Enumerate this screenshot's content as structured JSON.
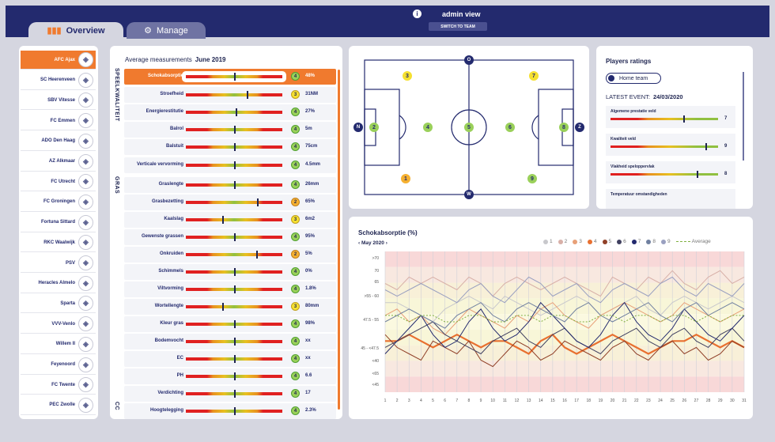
{
  "header": {
    "admin_label": "admin view",
    "switch_label": "SWITCH TO TEAM",
    "info_icon": "i",
    "tabs": [
      {
        "label": "Overview",
        "icon": "bar-chart-icon"
      },
      {
        "label": "Manage",
        "icon": "users-gear-icon"
      }
    ]
  },
  "teams": [
    "AFC Ajax",
    "SC Heerenveen",
    "SBV Vitesse",
    "FC Emmen",
    "ADO Den Haag",
    "AZ Alkmaar",
    "FC Utrecht",
    "FC Groningen",
    "Fortuna Sittard",
    "RKC Waalwijk",
    "PSV",
    "Heracles Almelo",
    "Sparta",
    "VVV-Venlo",
    "Willem II",
    "Feyenoord",
    "FC Twente",
    "PEC Zwolle"
  ],
  "measurements": {
    "title": "Average measurements",
    "period": "June 2019",
    "sections": [
      "SPEELKWALITEIT",
      "GRAS",
      "CC"
    ],
    "rows": [
      {
        "name": "Schokabsorptie",
        "score": "4",
        "value": "48%",
        "level": 0.5,
        "selected": true
      },
      {
        "name": "Stroefheid",
        "score": "3",
        "value": "31NM",
        "level": 0.63
      },
      {
        "name": "Energierestitutie",
        "score": "4",
        "value": "27%",
        "level": 0.52
      },
      {
        "name": "Balrol",
        "score": "4",
        "value": "5m",
        "level": 0.5
      },
      {
        "name": "Balstuit",
        "score": "4",
        "value": "75cm",
        "level": 0.5
      },
      {
        "name": "Verticale vervorming",
        "score": "4",
        "value": "4.5mm",
        "level": 0.5
      },
      {
        "name": "Graslengte",
        "score": "4",
        "value": "26mm",
        "level": 0.5
      },
      {
        "name": "Grasbezetting",
        "score": "2",
        "value": "65%",
        "level": 0.74
      },
      {
        "name": "Kaalslag",
        "score": "3",
        "value": "6m2",
        "level": 0.38
      },
      {
        "name": "Gewenste grassen",
        "score": "4",
        "value": "95%",
        "level": 0.5
      },
      {
        "name": "Onkruiden",
        "score": "2",
        "value": "5%",
        "level": 0.73
      },
      {
        "name": "Schimmels",
        "score": "4",
        "value": "0%",
        "level": 0.5
      },
      {
        "name": "Viltvorming",
        "score": "4",
        "value": "1.8%",
        "level": 0.5
      },
      {
        "name": "Wortellengte",
        "score": "3",
        "value": "80mm",
        "level": 0.38
      },
      {
        "name": "Kleur gras",
        "score": "4",
        "value": "98%",
        "level": 0.5
      },
      {
        "name": "Bodemvocht",
        "score": "4",
        "value": "xx",
        "level": 0.5
      },
      {
        "name": "EC",
        "score": "4",
        "value": "xx",
        "level": 0.5
      },
      {
        "name": "PH",
        "score": "4",
        "value": "6.6",
        "level": 0.5
      },
      {
        "name": "Verdichting",
        "score": "4",
        "value": "17",
        "level": 0.5
      },
      {
        "name": "Hoogtelegging",
        "score": "4",
        "value": "2.3%",
        "level": 0.5
      }
    ]
  },
  "field": {
    "compass": [
      "N",
      "O",
      "Z",
      "W"
    ],
    "players": [
      {
        "n": "3",
        "c": "yellow"
      },
      {
        "n": "7",
        "c": "yellow"
      },
      {
        "n": "2",
        "c": "green"
      },
      {
        "n": "4",
        "c": "green"
      },
      {
        "n": "5",
        "c": "green"
      },
      {
        "n": "6",
        "c": "green"
      },
      {
        "n": "8",
        "c": "green"
      },
      {
        "n": "1",
        "c": "orange"
      },
      {
        "n": "9",
        "c": "green"
      }
    ]
  },
  "ratings": {
    "title": "Players ratings",
    "toggle_label": "Home team",
    "latest_label": "LATEST EVENT:",
    "latest_date": "24/03/2020",
    "items": [
      {
        "name": "Algemene prestatie veld",
        "value": "7",
        "level": 0.68
      },
      {
        "name": "Kwaliteit veld",
        "value": "9",
        "level": 0.88
      },
      {
        "name": "Vlakheid speloppervlak",
        "value": "8",
        "level": 0.8
      },
      {
        "name": "Temperatuur omstandigheden",
        "value": "",
        "level": 0.6
      }
    ]
  },
  "chart_data": {
    "type": "line",
    "title": "Schokabsorptie (%)",
    "month": "May 2020",
    "x": [
      1,
      2,
      3,
      4,
      5,
      6,
      7,
      8,
      9,
      10,
      11,
      12,
      13,
      14,
      15,
      16,
      17,
      18,
      19,
      20,
      21,
      22,
      23,
      24,
      25,
      26,
      27,
      28,
      29,
      30,
      31
    ],
    "y_bands": [
      ">70",
      "70",
      "65",
      ">55 - 60",
      "47.5 - 55",
      "45 - <47.5",
      "<40",
      "<65",
      "<45"
    ],
    "legend": [
      "1",
      "2",
      "3",
      "4",
      "5",
      "6",
      "7",
      "8",
      "9",
      "Average"
    ],
    "colors": [
      "#c8c8cc",
      "#d8b0a8",
      "#e8a078",
      "#e87030",
      "#904028",
      "#404060",
      "#232a6e",
      "#7080a0",
      "#9aa0c0",
      "#80b040"
    ],
    "series": [
      {
        "name": "1",
        "values": [
          52,
          52,
          51,
          50,
          49,
          51,
          52,
          53,
          52,
          51,
          53,
          52,
          51,
          50,
          51,
          52,
          53,
          52,
          50,
          51,
          52,
          53,
          51,
          50,
          52,
          53,
          52,
          51,
          52,
          53,
          52
        ]
      },
      {
        "name": "2",
        "values": [
          55,
          54,
          56,
          55,
          56,
          55,
          54,
          56,
          55,
          53,
          55,
          56,
          55,
          54,
          55,
          56,
          55,
          54,
          53,
          56,
          55,
          54,
          56,
          55,
          57,
          55,
          54,
          56,
          57,
          55,
          56
        ]
      },
      {
        "name": "3",
        "values": [
          50,
          51,
          49,
          50,
          48,
          47,
          49,
          51,
          50,
          49,
          48,
          50,
          49,
          51,
          52,
          50,
          49,
          48,
          50,
          51,
          52,
          51,
          50,
          49,
          50,
          52,
          51,
          50,
          49,
          50,
          51
        ]
      },
      {
        "name": "4",
        "values": [
          46,
          46,
          47,
          46,
          45,
          46,
          47,
          46,
          45,
          46,
          46,
          45,
          44,
          46,
          47,
          45,
          44,
          45,
          46,
          47,
          46,
          45,
          44,
          45,
          46,
          46,
          47,
          46,
          45,
          46,
          45
        ]
      },
      {
        "name": "5",
        "values": [
          47,
          45,
          44,
          43,
          46,
          45,
          44,
          46,
          43,
          42,
          44,
          46,
          45,
          43,
          44,
          46,
          45,
          44,
          43,
          45,
          46,
          44,
          43,
          45,
          46,
          44,
          45,
          43,
          44,
          46,
          45
        ]
      },
      {
        "name": "6",
        "values": [
          45,
          46,
          47,
          48,
          49,
          47,
          46,
          45,
          44,
          46,
          47,
          48,
          46,
          45,
          47,
          48,
          46,
          45,
          44,
          46,
          47,
          48,
          46,
          45,
          47,
          48,
          46,
          45,
          47,
          48,
          46
        ]
      },
      {
        "name": "7",
        "values": [
          44,
          46,
          48,
          50,
          47,
          45,
          46,
          49,
          51,
          48,
          46,
          47,
          49,
          52,
          50,
          48,
          46,
          45,
          47,
          50,
          52,
          49,
          47,
          46,
          48,
          51,
          49,
          47,
          46,
          48,
          50
        ]
      },
      {
        "name": "8",
        "values": [
          49,
          50,
          51,
          50,
          49,
          48,
          50,
          51,
          52,
          50,
          49,
          51,
          52,
          51,
          50,
          49,
          51,
          52,
          50,
          49,
          50,
          51,
          52,
          50,
          49,
          51,
          52,
          50,
          51,
          52,
          51
        ]
      },
      {
        "name": "9",
        "values": [
          54,
          53,
          54,
          55,
          54,
          53,
          52,
          54,
          55,
          53,
          52,
          54,
          56,
          55,
          53,
          54,
          55,
          53,
          52,
          54,
          55,
          54,
          53,
          55,
          56,
          54,
          53,
          55,
          54,
          53,
          55
        ]
      },
      {
        "name": "Average",
        "values": [
          50,
          50,
          49,
          50,
          50,
          49,
          49,
          50,
          50,
          49,
          49,
          50,
          50,
          49,
          50,
          50,
          49,
          49,
          50,
          50,
          49,
          50,
          50,
          49,
          50,
          50,
          49,
          50,
          49,
          50,
          50
        ]
      }
    ]
  }
}
